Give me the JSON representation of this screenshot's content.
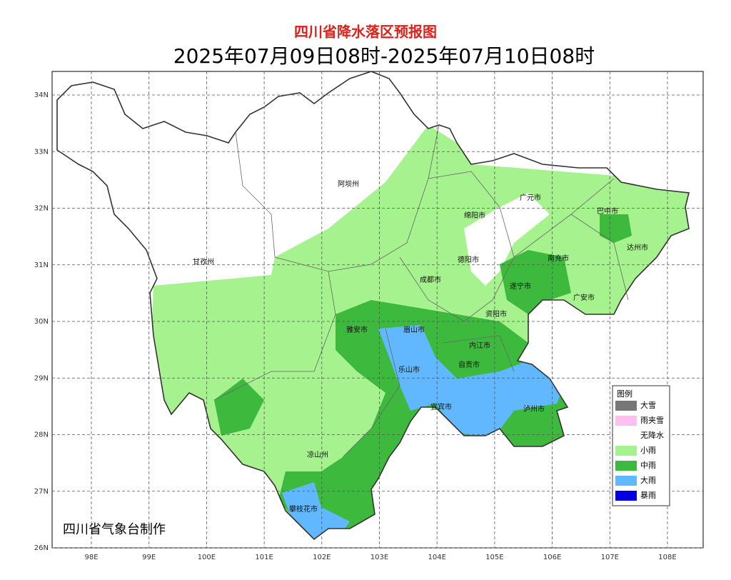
{
  "header": {
    "title": "四川省降水落区预报图",
    "subtitle": "2025年07月09日08时-2025年07月10日08时"
  },
  "map": {
    "lon_labels": [
      "98E",
      "99E",
      "100E",
      "101E",
      "102E",
      "103E",
      "104E",
      "105E",
      "106E",
      "107E",
      "108E"
    ],
    "lat_labels": [
      "34N",
      "33N",
      "32N",
      "31N",
      "30N",
      "29N",
      "28N",
      "27N",
      "26N"
    ],
    "regions": [
      "阿坝州",
      "甘孜州",
      "广元市",
      "巴中市",
      "绵阳市",
      "达州市",
      "南充市",
      "德阳市",
      "成都市",
      "遂宁市",
      "广安市",
      "资阳市",
      "雅安市",
      "眉山市",
      "内江市",
      "乐山市",
      "自贡市",
      "宜宾市",
      "泸州市",
      "凉山州",
      "攀枝花市"
    ]
  },
  "legend": {
    "title": "图例",
    "items": [
      {
        "name": "大雪",
        "color": "#777777"
      },
      {
        "name": "雨夹雪",
        "color": "#ffc0f0"
      },
      {
        "name": "无降水",
        "color": "#ffffff"
      },
      {
        "name": "小雨",
        "color": "#a6f28f"
      },
      {
        "name": "中雨",
        "color": "#3dba3d"
      },
      {
        "name": "大雨",
        "color": "#61b8ff"
      },
      {
        "name": "暴雨",
        "color": "#0000e1"
      }
    ]
  },
  "footer": {
    "credit": "四川省气象台制作"
  }
}
